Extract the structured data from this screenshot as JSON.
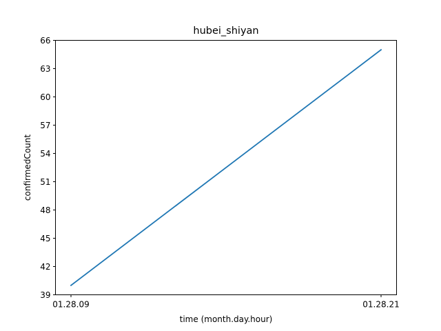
{
  "chart_data": {
    "type": "line",
    "title": "hubei_shiyan",
    "xlabel": "time (month.day.hour)",
    "ylabel": "confirmedCount",
    "categories": [
      "01.28.09",
      "01.28.21"
    ],
    "series": [
      {
        "values": [
          40,
          65
        ]
      }
    ],
    "ylim": [
      39,
      66
    ],
    "yticks": [
      39,
      42,
      45,
      48,
      51,
      54,
      57,
      60,
      63,
      66
    ],
    "grid": false,
    "legend": "none",
    "line_color": "#1f77b4"
  }
}
